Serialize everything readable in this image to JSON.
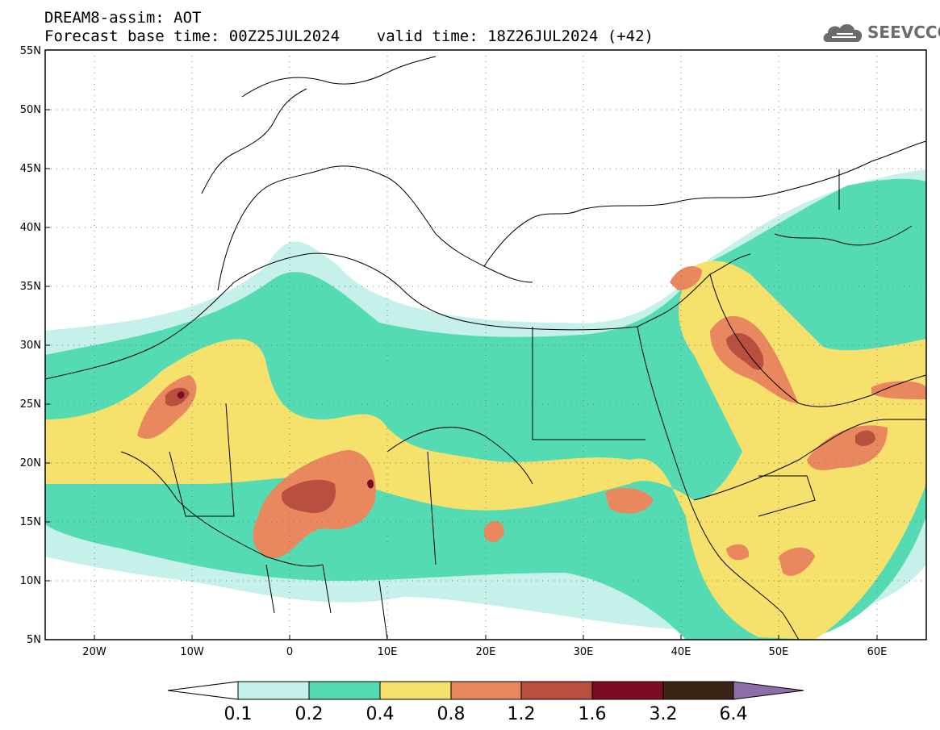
{
  "header": {
    "line1": "DREAM8-assim: AOT",
    "line2": "Forecast base time: 00Z25JUL2024    valid time: 18Z26JUL2024 (+42)"
  },
  "logo": {
    "text": "SEEVCCC",
    "icon": "cloud-logo-icon"
  },
  "map": {
    "lat_range": [
      5,
      55
    ],
    "lon_range": [
      -25,
      65
    ],
    "lat_ticks": [
      "5N",
      "10N",
      "15N",
      "20N",
      "25N",
      "30N",
      "35N",
      "40N",
      "45N",
      "50N",
      "55N"
    ],
    "lon_ticks": [
      "20W",
      "10W",
      "0",
      "10E",
      "20E",
      "30E",
      "40E",
      "50E",
      "60E"
    ],
    "gridlines": "dotted",
    "field": "Aerosol optical thickness (AOT)"
  },
  "legend": {
    "levels": [
      "0.1",
      "0.2",
      "0.4",
      "0.8",
      "1.2",
      "1.6",
      "3.2",
      "6.4"
    ],
    "colors": [
      "#c6f0ea",
      "#55dbb4",
      "#f5e16c",
      "#e9875e",
      "#b9503f",
      "#7b0c22",
      "#3b2316",
      "#8e6ea8"
    ]
  }
}
